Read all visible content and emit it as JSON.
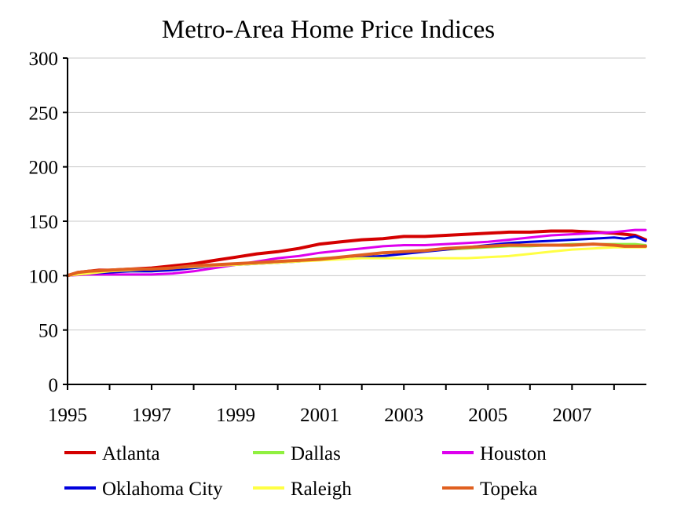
{
  "chart_data": {
    "type": "line",
    "title": "Metro-Area Home Price Indices",
    "xlabel": "",
    "ylabel": "",
    "xlim": [
      1995,
      2008.75
    ],
    "ylim": [
      0,
      300
    ],
    "yticks": [
      0,
      50,
      100,
      150,
      200,
      250,
      300
    ],
    "xticks": [
      1995,
      1997,
      1999,
      2001,
      2003,
      2005,
      2007
    ],
    "grid": "horizontal",
    "legend": "bottom",
    "series": [
      {
        "name": "Atlanta",
        "color": "#d40000",
        "x": [
          1995,
          1995.25,
          1995.5,
          1995.75,
          1996,
          1996.5,
          1997,
          1997.5,
          1998,
          1998.5,
          1999,
          1999.5,
          2000,
          2000.5,
          2001,
          2001.5,
          2002,
          2002.5,
          2003,
          2003.5,
          2004,
          2004.5,
          2005,
          2005.5,
          2006,
          2006.5,
          2007,
          2007.5,
          2008,
          2008.5,
          2008.75
        ],
        "y": [
          100,
          103,
          104,
          105,
          105,
          106,
          107,
          109,
          111,
          114,
          117,
          120,
          122,
          125,
          129,
          131,
          133,
          134,
          136,
          136,
          137,
          138,
          139,
          140,
          140,
          141,
          141,
          140,
          139,
          137,
          133
        ]
      },
      {
        "name": "Dallas",
        "color": "#90f040",
        "x": [
          1995,
          1995.5,
          1996,
          1996.5,
          1997,
          1997.5,
          1998,
          1998.5,
          1999,
          1999.5,
          2000,
          2000.5,
          2001,
          2001.5,
          2002,
          2002.5,
          2003,
          2003.5,
          2004,
          2004.5,
          2005,
          2005.5,
          2006,
          2006.5,
          2007,
          2007.5,
          2008,
          2008.5,
          2008.75
        ],
        "y": [
          100,
          103,
          104,
          104,
          104,
          106,
          107,
          109,
          110,
          111,
          112,
          114,
          116,
          117,
          119,
          121,
          122,
          123,
          124,
          125,
          126,
          127,
          127,
          128,
          129,
          129,
          129,
          129,
          128
        ]
      },
      {
        "name": "Houston",
        "color": "#dd00ee",
        "x": [
          1995,
          1995.5,
          1996,
          1996.5,
          1997,
          1997.5,
          1998,
          1998.5,
          1999,
          1999.5,
          2000,
          2000.5,
          2001,
          2001.5,
          2002,
          2002.5,
          2003,
          2003.5,
          2004,
          2004.5,
          2005,
          2005.5,
          2006,
          2006.5,
          2007,
          2007.5,
          2008,
          2008.5,
          2008.75
        ],
        "y": [
          100,
          101,
          101,
          101,
          101,
          102,
          104,
          107,
          110,
          113,
          116,
          118,
          121,
          123,
          125,
          127,
          128,
          128,
          129,
          130,
          131,
          133,
          135,
          137,
          138,
          139,
          140,
          142,
          142
        ]
      },
      {
        "name": "Oklahoma City",
        "color": "#0000dd",
        "x": [
          1995,
          1995.5,
          1996,
          1996.5,
          1997,
          1997.5,
          1998,
          1998.5,
          1999,
          1999.5,
          2000,
          2000.5,
          2001,
          2001.5,
          2002,
          2002.5,
          2003,
          2003.5,
          2004,
          2004.5,
          2005,
          2005.5,
          2006,
          2006.5,
          2007,
          2007.5,
          2008,
          2008.25,
          2008.5,
          2008.75
        ],
        "y": [
          100,
          102,
          103,
          104,
          104,
          105,
          107,
          109,
          110,
          111,
          112,
          113,
          115,
          116,
          117,
          118,
          120,
          122,
          124,
          126,
          128,
          130,
          131,
          132,
          133,
          134,
          135,
          134,
          136,
          132
        ]
      },
      {
        "name": "Raleigh",
        "color": "#ffff44",
        "x": [
          1995,
          1995.5,
          1996,
          1996.5,
          1997,
          1997.5,
          1998,
          1998.5,
          1999,
          1999.5,
          2000,
          2000.5,
          2001,
          2001.5,
          2002,
          2002.5,
          2003,
          2003.5,
          2004,
          2004.5,
          2005,
          2005.5,
          2006,
          2006.5,
          2007,
          2007.5,
          2008,
          2008.5,
          2008.75
        ],
        "y": [
          100,
          102,
          104,
          105,
          106,
          107,
          108,
          109,
          110,
          111,
          112,
          113,
          114,
          115,
          116,
          116,
          116,
          116,
          116,
          116,
          117,
          118,
          120,
          122,
          124,
          125,
          126,
          126,
          126
        ]
      },
      {
        "name": "Topeka",
        "color": "#e06020",
        "x": [
          1995,
          1995.25,
          1995.5,
          1996,
          1996.5,
          1997,
          1997.5,
          1998,
          1998.5,
          1999,
          1999.5,
          2000,
          2000.5,
          2001,
          2001.5,
          2002,
          2002.5,
          2003,
          2003.5,
          2004,
          2004.5,
          2005,
          2005.5,
          2006,
          2006.5,
          2007,
          2007.5,
          2008,
          2008.25,
          2008.5,
          2008.75
        ],
        "y": [
          100,
          103,
          104,
          105,
          106,
          106,
          107,
          109,
          110,
          111,
          112,
          113,
          114,
          115,
          117,
          119,
          121,
          122,
          123,
          125,
          126,
          127,
          128,
          128,
          128,
          128,
          129,
          128,
          127,
          127,
          127
        ]
      }
    ]
  }
}
